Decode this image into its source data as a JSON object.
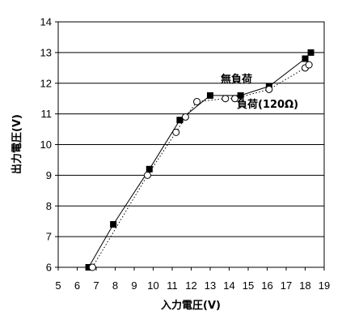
{
  "chart_data": {
    "type": "line",
    "xlabel": "入力電圧(V)",
    "ylabel": "出力電圧(V)",
    "xlim": [
      5,
      19
    ],
    "ylim": [
      6,
      14
    ],
    "xticks": [
      5,
      6,
      7,
      8,
      9,
      10,
      11,
      12,
      13,
      14,
      15,
      16,
      17,
      18,
      19
    ],
    "yticks": [
      6,
      7,
      8,
      9,
      10,
      11,
      12,
      13,
      14
    ],
    "grid": "horizontal",
    "series": [
      {
        "name": "無負荷",
        "marker": "filled-square",
        "line": "solid",
        "color": "#000000",
        "x": [
          6.6,
          7.9,
          9.8,
          11.4,
          13.0,
          14.6,
          16.1,
          18.0,
          18.3
        ],
        "y": [
          6.0,
          7.4,
          9.2,
          10.8,
          11.6,
          11.6,
          11.9,
          12.8,
          13.0
        ]
      },
      {
        "name": "負荷(120Ω)",
        "marker": "open-circle",
        "line": "dotted",
        "color": "#000000",
        "x": [
          6.8,
          9.7,
          11.2,
          11.7,
          12.3,
          13.8,
          14.3,
          16.1,
          18.0,
          18.2
        ],
        "y": [
          6.0,
          9.0,
          10.4,
          10.9,
          11.4,
          11.5,
          11.5,
          11.8,
          12.5,
          12.6
        ]
      }
    ],
    "annotations": [
      {
        "text": "無負荷",
        "series": 0
      },
      {
        "text": "負荷(120Ω)",
        "series": 1
      }
    ]
  }
}
